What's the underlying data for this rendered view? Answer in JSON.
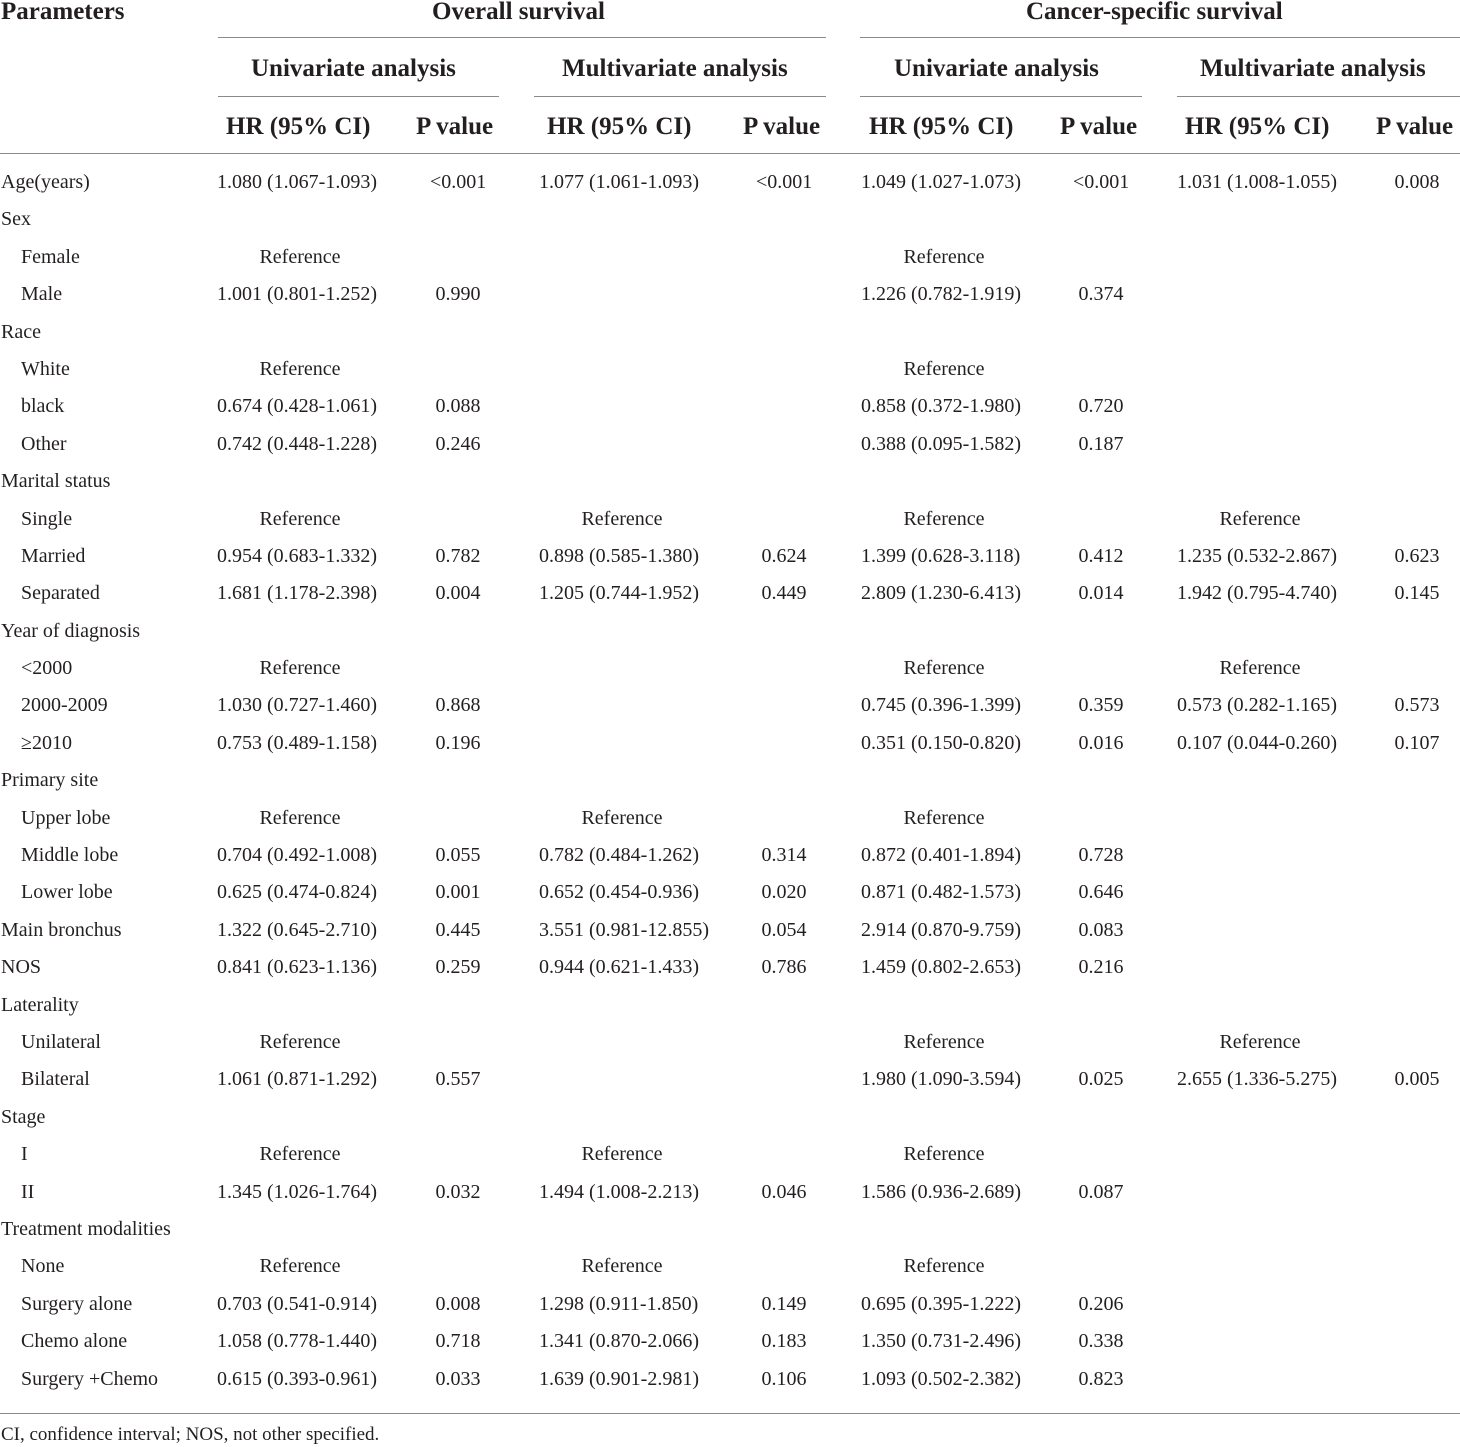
{
  "header": {
    "parameters": "Parameters",
    "groups": [
      "Overall survival",
      "Cancer-specific survival"
    ],
    "subgroups": [
      "Univariate analysis",
      "Multivariate analysis",
      "Univariate analysis",
      "Multivariate analysis"
    ],
    "columns": [
      "HR (95% CI)",
      "P value",
      "HR (95% CI)",
      "P value",
      "HR (95% CI)",
      "P value",
      "HR (95% CI)",
      "P value"
    ]
  },
  "rows": [
    {
      "label": "Age(years)",
      "indent": false,
      "cells": [
        "1.080 (1.067-1.093)",
        "<0.001",
        "1.077 (1.061-1.093)",
        "<0.001",
        "1.049 (1.027-1.073)",
        "<0.001",
        "1.031 (1.008-1.055)",
        "0.008"
      ]
    },
    {
      "label": "Sex",
      "indent": false,
      "cells": [
        "",
        "",
        "",
        "",
        "",
        "",
        "",
        ""
      ]
    },
    {
      "label": "Female",
      "indent": true,
      "cells": [
        "Reference",
        "",
        "",
        "",
        "Reference",
        "",
        "",
        ""
      ]
    },
    {
      "label": "Male",
      "indent": true,
      "cells": [
        "1.001 (0.801-1.252)",
        "0.990",
        "",
        "",
        "1.226 (0.782-1.919)",
        "0.374",
        "",
        ""
      ]
    },
    {
      "label": "Race",
      "indent": false,
      "cells": [
        "",
        "",
        "",
        "",
        "",
        "",
        "",
        ""
      ]
    },
    {
      "label": "White",
      "indent": true,
      "cells": [
        "Reference",
        "",
        "",
        "",
        "Reference",
        "",
        "",
        ""
      ]
    },
    {
      "label": "black",
      "indent": true,
      "cells": [
        "0.674 (0.428-1.061)",
        "0.088",
        "",
        "",
        "0.858 (0.372-1.980)",
        "0.720",
        "",
        ""
      ]
    },
    {
      "label": "Other",
      "indent": true,
      "cells": [
        "0.742 (0.448-1.228)",
        "0.246",
        "",
        "",
        "0.388 (0.095-1.582)",
        "0.187",
        "",
        ""
      ]
    },
    {
      "label": "Marital status",
      "indent": false,
      "cells": [
        "",
        "",
        "",
        "",
        "",
        "",
        "",
        ""
      ]
    },
    {
      "label": "Single",
      "indent": true,
      "cells": [
        "Reference",
        "",
        "Reference",
        "",
        "Reference",
        "",
        "Reference",
        ""
      ]
    },
    {
      "label": "Married",
      "indent": true,
      "cells": [
        "0.954 (0.683-1.332)",
        "0.782",
        "0.898 (0.585-1.380)",
        "0.624",
        "1.399 (0.628-3.118)",
        "0.412",
        "1.235 (0.532-2.867)",
        "0.623"
      ]
    },
    {
      "label": "Separated",
      "indent": true,
      "cells": [
        "1.681 (1.178-2.398)",
        "0.004",
        "1.205 (0.744-1.952)",
        "0.449",
        "2.809 (1.230-6.413)",
        "0.014",
        "1.942 (0.795-4.740)",
        "0.145"
      ]
    },
    {
      "label": "Year of diagnosis",
      "indent": false,
      "cells": [
        "",
        "",
        "",
        "",
        "",
        "",
        "",
        ""
      ]
    },
    {
      "label": "<2000",
      "indent": true,
      "cells": [
        "Reference",
        "",
        "",
        "",
        "Reference",
        "",
        "Reference",
        ""
      ]
    },
    {
      "label": "2000-2009",
      "indent": true,
      "cells": [
        "1.030 (0.727-1.460)",
        "0.868",
        "",
        "",
        "0.745 (0.396-1.399)",
        "0.359",
        "0.573 (0.282-1.165)",
        "0.573"
      ]
    },
    {
      "label": "≥2010",
      "indent": true,
      "cells": [
        "0.753 (0.489-1.158)",
        "0.196",
        "",
        "",
        "0.351 (0.150-0.820)",
        "0.016",
        "0.107 (0.044-0.260)",
        "0.107"
      ]
    },
    {
      "label": "Primary site",
      "indent": false,
      "cells": [
        "",
        "",
        "",
        "",
        "",
        "",
        "",
        ""
      ]
    },
    {
      "label": "Upper lobe",
      "indent": true,
      "cells": [
        "Reference",
        "",
        "Reference",
        "",
        "Reference",
        "",
        "",
        ""
      ]
    },
    {
      "label": "Middle lobe",
      "indent": true,
      "cells": [
        "0.704 (0.492-1.008)",
        "0.055",
        "0.782 (0.484-1.262)",
        "0.314",
        "0.872 (0.401-1.894)",
        "0.728",
        "",
        ""
      ]
    },
    {
      "label": "Lower lobe",
      "indent": true,
      "cells": [
        "0.625 (0.474-0.824)",
        "0.001",
        "0.652 (0.454-0.936)",
        "0.020",
        "0.871 (0.482-1.573)",
        "0.646",
        "",
        ""
      ]
    },
    {
      "label": "Main bronchus",
      "indent": false,
      "cells": [
        "1.322 (0.645-2.710)",
        "0.445",
        "3.551 (0.981-12.855)",
        "0.054",
        "2.914 (0.870-9.759)",
        "0.083",
        "",
        ""
      ]
    },
    {
      "label": "NOS",
      "indent": false,
      "cells": [
        "0.841 (0.623-1.136)",
        "0.259",
        "0.944 (0.621-1.433)",
        "0.786",
        "1.459 (0.802-2.653)",
        "0.216",
        "",
        ""
      ]
    },
    {
      "label": "Laterality",
      "indent": false,
      "cells": [
        "",
        "",
        "",
        "",
        "",
        "",
        "",
        ""
      ]
    },
    {
      "label": "Unilateral",
      "indent": true,
      "cells": [
        "Reference",
        "",
        "",
        "",
        "Reference",
        "",
        "Reference",
        ""
      ]
    },
    {
      "label": "Bilateral",
      "indent": true,
      "cells": [
        "1.061 (0.871-1.292)",
        "0.557",
        "",
        "",
        "1.980 (1.090-3.594)",
        "0.025",
        "2.655 (1.336-5.275)",
        "0.005"
      ]
    },
    {
      "label": "Stage",
      "indent": false,
      "cells": [
        "",
        "",
        "",
        "",
        "",
        "",
        "",
        ""
      ]
    },
    {
      "label": "I",
      "indent": true,
      "cells": [
        "Reference",
        "",
        "Reference",
        "",
        "Reference",
        "",
        "",
        ""
      ]
    },
    {
      "label": "II",
      "indent": true,
      "cells": [
        "1.345 (1.026-1.764)",
        "0.032",
        "1.494 (1.008-2.213)",
        "0.046",
        "1.586 (0.936-2.689)",
        "0.087",
        "",
        ""
      ]
    },
    {
      "label": "Treatment modalities",
      "indent": false,
      "cells": [
        "",
        "",
        "",
        "",
        "",
        "",
        "",
        ""
      ]
    },
    {
      "label": "None",
      "indent": true,
      "cells": [
        "Reference",
        "",
        "Reference",
        "",
        "Reference",
        "",
        "",
        ""
      ]
    },
    {
      "label": "Surgery alone",
      "indent": true,
      "cells": [
        "0.703 (0.541-0.914)",
        "0.008",
        "1.298 (0.911-1.850)",
        "0.149",
        "0.695 (0.395-1.222)",
        "0.206",
        "",
        ""
      ]
    },
    {
      "label": "Chemo alone",
      "indent": true,
      "cells": [
        "1.058 (0.778-1.440)",
        "0.718",
        "1.341 (0.870-2.066)",
        "0.183",
        "1.350 (0.731-2.496)",
        "0.338",
        "",
        ""
      ]
    },
    {
      "label": "Surgery +Chemo",
      "indent": true,
      "cells": [
        "0.615 (0.393-0.961)",
        "0.033",
        "1.639 (0.901-2.981)",
        "0.106",
        "1.093 (0.502-2.382)",
        "0.823",
        "",
        ""
      ]
    }
  ],
  "footnote": "CI, confidence interval; NOS, not other specified."
}
